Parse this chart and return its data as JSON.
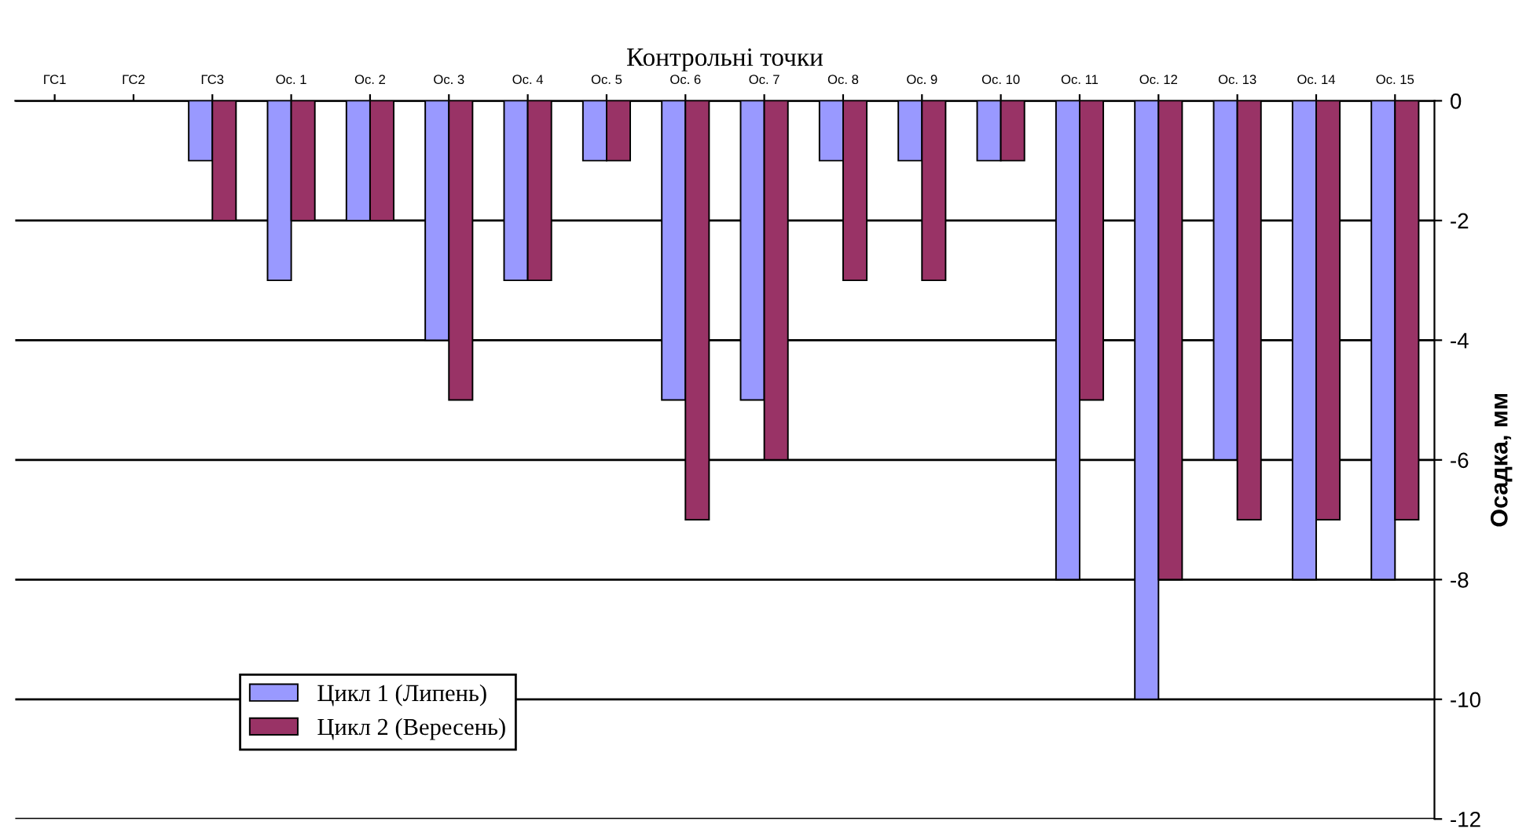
{
  "chart_data": {
    "type": "bar",
    "xlabel": "Контрольні точки",
    "ylabel": "Осадка, мм",
    "categories": [
      "ГС1",
      "ГС2",
      "ГС3",
      "Ос. 1",
      "Ос. 2",
      "Ос. 3",
      "Ос. 4",
      "Ос. 5",
      "Ос. 6",
      "Ос. 7",
      "Ос. 8",
      "Ос. 9",
      "Ос. 10",
      "Ос. 11",
      "Ос. 12",
      "Ос. 13",
      "Ос. 14",
      "Ос. 15"
    ],
    "series": [
      {
        "name": "Цикл 1 (Липень)",
        "color": "#9999ff",
        "values": [
          null,
          null,
          -1,
          -3,
          -2,
          -4,
          -3,
          -1,
          -5,
          -5,
          -1,
          -1,
          -1,
          -8,
          -10,
          -6,
          -8,
          -8
        ]
      },
      {
        "name": "Цикл 2 (Вересень)",
        "color": "#993366",
        "values": [
          null,
          null,
          -2,
          -2,
          -2,
          -5,
          -3,
          -1,
          -7,
          -6,
          -3,
          -3,
          -1,
          -5,
          -8,
          -7,
          -7,
          -7
        ]
      }
    ],
    "ylim": [
      -12,
      0
    ],
    "yticks": [
      0,
      -2,
      -4,
      -6,
      -8,
      -10,
      -12
    ],
    "grid": "y",
    "legend": "bottom left"
  }
}
